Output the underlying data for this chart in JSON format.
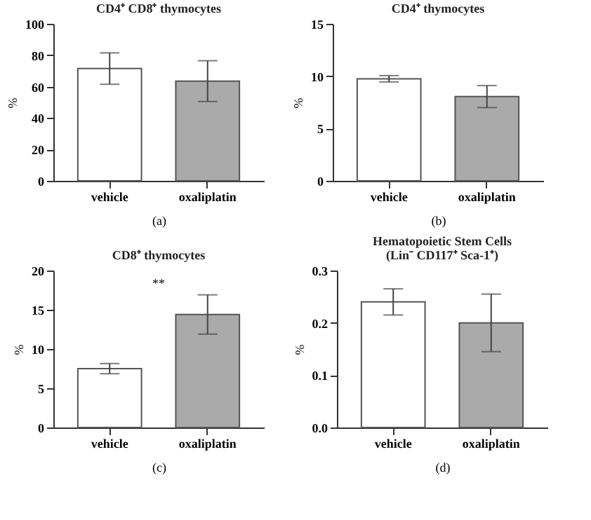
{
  "chart_data": [
    {
      "type": "bar",
      "title": "CD4⁺ CD8⁺ thymocytes",
      "ylabel": "%",
      "categories": [
        "vehicle",
        "oxaliplatin"
      ],
      "values": [
        71.5,
        63.5
      ],
      "errors": [
        10,
        13
      ],
      "colors": [
        "#ffffff",
        "#aaaaaa"
      ],
      "ylim": [
        0,
        100
      ],
      "yticks": [
        0,
        20,
        40,
        60,
        80,
        100
      ],
      "annotations": [
        "(a)"
      ]
    },
    {
      "type": "bar",
      "title": "CD4⁺ thymocytes",
      "ylabel": "%",
      "categories": [
        "vehicle",
        "oxaliplatin"
      ],
      "values": [
        9.75,
        8.05
      ],
      "errors": [
        0.3,
        1.05
      ],
      "colors": [
        "#ffffff",
        "#aaaaaa"
      ],
      "ylim": [
        0,
        15
      ],
      "yticks": [
        0,
        5,
        10,
        15
      ],
      "annotations": [
        "(b)"
      ]
    },
    {
      "type": "bar",
      "title": "CD8⁺ thymocytes",
      "ylabel": "%",
      "categories": [
        "vehicle",
        "oxaliplatin"
      ],
      "values": [
        7.5,
        14.4
      ],
      "errors": [
        0.65,
        2.5
      ],
      "colors": [
        "#ffffff",
        "#aaaaaa"
      ],
      "ylim": [
        0,
        20
      ],
      "yticks": [
        0,
        5,
        10,
        15,
        20
      ],
      "annotations": [
        "(c)",
        "**"
      ]
    },
    {
      "type": "bar",
      "title": "Hematopoietic Stem Cells",
      "subtitle": "(Lin⁻ CD117⁺ Sca-1⁺)",
      "ylabel": "%",
      "categories": [
        "vehicle",
        "oxaliplatin"
      ],
      "values": [
        0.24,
        0.2
      ],
      "errors": [
        0.025,
        0.055
      ],
      "colors": [
        "#ffffff",
        "#aaaaaa"
      ],
      "ylim": [
        0,
        0.3
      ],
      "yticks": [
        {
          "value": 0,
          "label": "0.0"
        },
        0.1,
        0.2,
        0.3
      ],
      "annotations": [
        "(d)"
      ]
    }
  ]
}
